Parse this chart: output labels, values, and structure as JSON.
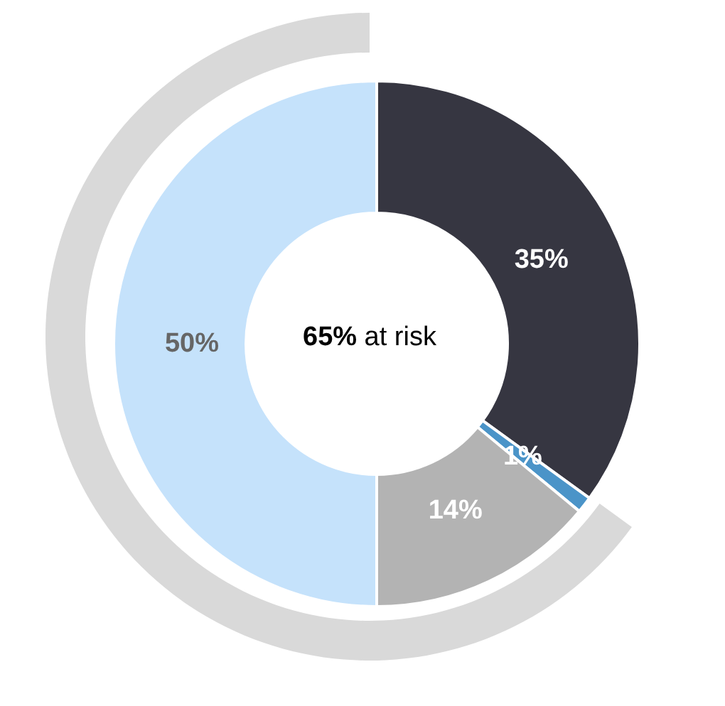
{
  "chart_data": {
    "type": "donut",
    "categories": [
      null,
      null,
      null,
      null
    ],
    "legend": false,
    "series": [
      {
        "values": [
          35,
          1,
          14,
          50
        ],
        "colors": [
          "#363641",
          "#4b94c8",
          "#b3b3b3",
          "#c5e2fb"
        ],
        "value_labels": [
          "35%",
          "1%",
          "14%",
          "50%"
        ]
      }
    ],
    "annotations": [
      "65% at risk"
    ]
  }
}
